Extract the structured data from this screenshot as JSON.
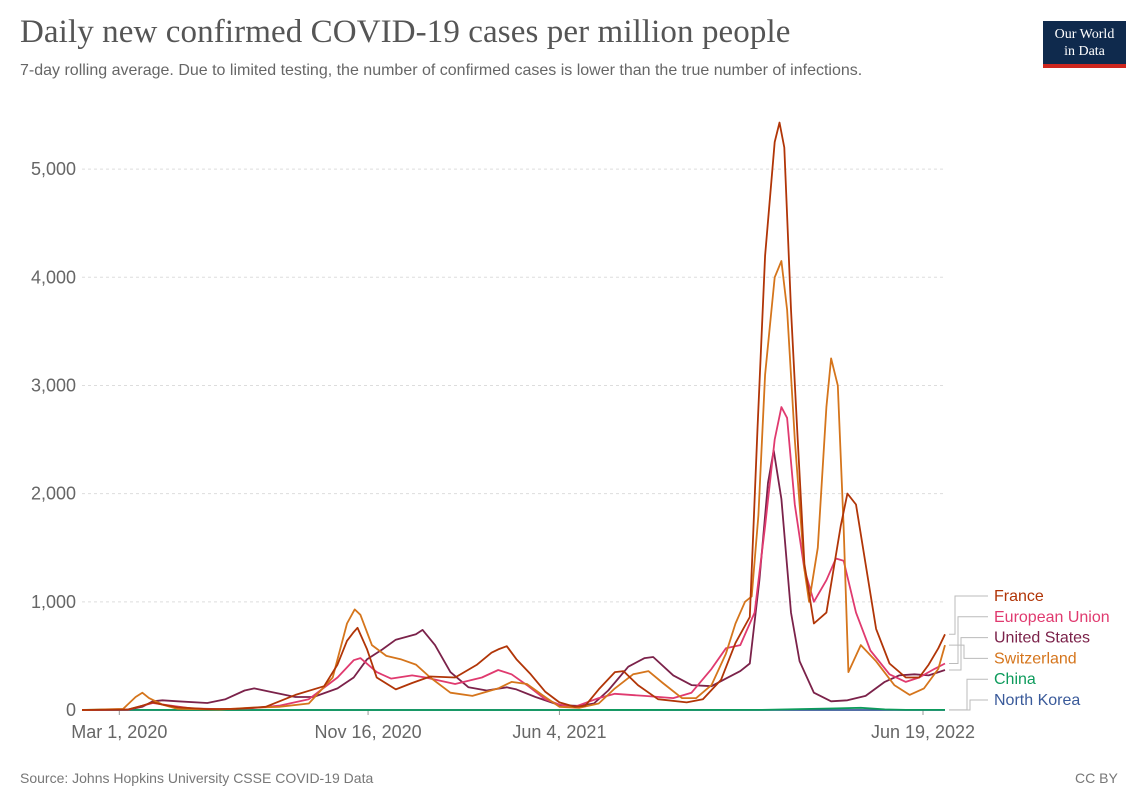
{
  "header": {
    "title": "Daily new confirmed COVID-19 cases per million people",
    "subtitle": "7-day rolling average. Due to limited testing, the number of confirmed cases is lower than the true number of infections."
  },
  "logo": {
    "line1": "Our World",
    "line2": "in Data",
    "bar_color": "#ce261e",
    "bg_color": "#0f2a4d"
  },
  "footer": {
    "source": "Source: Johns Hopkins University CSSE COVID-19 Data",
    "license": "CC BY"
  },
  "chart_data": {
    "type": "line",
    "title": "Daily new confirmed COVID-19 cases per million people",
    "xlabel": "",
    "ylabel": "",
    "x_domain": [
      "2020-01-22",
      "2022-07-12"
    ],
    "ylim": [
      0,
      5500
    ],
    "yticks": [
      0,
      1000,
      2000,
      3000,
      4000,
      5000
    ],
    "ytick_labels": [
      "0",
      "1,000",
      "2,000",
      "3,000",
      "4,000",
      "5,000"
    ],
    "xticks": [
      {
        "date": "2020-03-01",
        "label": "Mar 1, 2020"
      },
      {
        "date": "2020-11-16",
        "label": "Nov 16, 2020"
      },
      {
        "date": "2021-06-04",
        "label": "Jun 4, 2021"
      },
      {
        "date": "2022-06-19",
        "label": "Jun 19, 2022"
      }
    ],
    "grid": true,
    "legend_placement": "right",
    "series": [
      {
        "name": "France",
        "color": "#b13507",
        "points": [
          [
            "2020-01-22",
            0
          ],
          [
            "2020-03-10",
            5
          ],
          [
            "2020-03-25",
            40
          ],
          [
            "2020-04-05",
            70
          ],
          [
            "2020-04-15",
            50
          ],
          [
            "2020-05-01",
            25
          ],
          [
            "2020-06-01",
            8
          ],
          [
            "2020-07-01",
            10
          ],
          [
            "2020-08-01",
            30
          ],
          [
            "2020-09-01",
            140
          ],
          [
            "2020-10-01",
            220
          ],
          [
            "2020-10-15",
            420
          ],
          [
            "2020-10-25",
            640
          ],
          [
            "2020-11-01",
            720
          ],
          [
            "2020-11-05",
            760
          ],
          [
            "2020-11-15",
            560
          ],
          [
            "2020-11-25",
            300
          ],
          [
            "2020-12-15",
            190
          ],
          [
            "2021-01-01",
            250
          ],
          [
            "2021-01-20",
            310
          ],
          [
            "2021-02-15",
            300
          ],
          [
            "2021-03-10",
            420
          ],
          [
            "2021-03-25",
            530
          ],
          [
            "2021-04-01",
            560
          ],
          [
            "2021-04-10",
            590
          ],
          [
            "2021-04-20",
            470
          ],
          [
            "2021-05-05",
            330
          ],
          [
            "2021-05-20",
            170
          ],
          [
            "2021-06-04",
            70
          ],
          [
            "2021-06-20",
            30
          ],
          [
            "2021-07-01",
            40
          ],
          [
            "2021-07-15",
            190
          ],
          [
            "2021-08-01",
            350
          ],
          [
            "2021-08-10",
            360
          ],
          [
            "2021-08-25",
            230
          ],
          [
            "2021-09-15",
            100
          ],
          [
            "2021-10-15",
            70
          ],
          [
            "2021-11-01",
            100
          ],
          [
            "2021-11-20",
            280
          ],
          [
            "2021-12-05",
            620
          ],
          [
            "2021-12-20",
            860
          ],
          [
            "2021-12-28",
            2600
          ],
          [
            "2022-01-05",
            4200
          ],
          [
            "2022-01-15",
            5250
          ],
          [
            "2022-01-20",
            5430
          ],
          [
            "2022-01-25",
            5200
          ],
          [
            "2022-02-01",
            3700
          ],
          [
            "2022-02-08",
            2500
          ],
          [
            "2022-02-15",
            1350
          ],
          [
            "2022-02-25",
            800
          ],
          [
            "2022-03-10",
            900
          ],
          [
            "2022-03-25",
            1700
          ],
          [
            "2022-04-01",
            2000
          ],
          [
            "2022-04-10",
            1900
          ],
          [
            "2022-04-20",
            1350
          ],
          [
            "2022-05-01",
            750
          ],
          [
            "2022-05-15",
            430
          ],
          [
            "2022-06-01",
            300
          ],
          [
            "2022-06-15",
            300
          ],
          [
            "2022-06-25",
            420
          ],
          [
            "2022-07-05",
            570
          ],
          [
            "2022-07-12",
            700
          ]
        ]
      },
      {
        "name": "European Union",
        "color": "#e03a6f",
        "points": [
          [
            "2020-01-22",
            0
          ],
          [
            "2020-03-10",
            3
          ],
          [
            "2020-03-25",
            40
          ],
          [
            "2020-04-05",
            65
          ],
          [
            "2020-04-20",
            45
          ],
          [
            "2020-05-15",
            15
          ],
          [
            "2020-06-15",
            8
          ],
          [
            "2020-07-15",
            15
          ],
          [
            "2020-08-15",
            40
          ],
          [
            "2020-09-15",
            100
          ],
          [
            "2020-10-15",
            300
          ],
          [
            "2020-11-01",
            460
          ],
          [
            "2020-11-08",
            480
          ],
          [
            "2020-11-25",
            350
          ],
          [
            "2020-12-10",
            290
          ],
          [
            "2021-01-01",
            320
          ],
          [
            "2021-01-15",
            300
          ],
          [
            "2021-02-15",
            240
          ],
          [
            "2021-03-15",
            300
          ],
          [
            "2021-04-01",
            370
          ],
          [
            "2021-04-15",
            330
          ],
          [
            "2021-05-01",
            230
          ],
          [
            "2021-05-20",
            100
          ],
          [
            "2021-06-04",
            50
          ],
          [
            "2021-06-20",
            30
          ],
          [
            "2021-07-15",
            110
          ],
          [
            "2021-08-01",
            150
          ],
          [
            "2021-09-01",
            130
          ],
          [
            "2021-10-01",
            110
          ],
          [
            "2021-10-20",
            160
          ],
          [
            "2021-11-10",
            380
          ],
          [
            "2021-11-25",
            570
          ],
          [
            "2021-12-10",
            600
          ],
          [
            "2021-12-25",
            900
          ],
          [
            "2022-01-05",
            1700
          ],
          [
            "2022-01-15",
            2500
          ],
          [
            "2022-01-22",
            2800
          ],
          [
            "2022-01-28",
            2700
          ],
          [
            "2022-02-05",
            1900
          ],
          [
            "2022-02-15",
            1300
          ],
          [
            "2022-02-25",
            1000
          ],
          [
            "2022-03-10",
            1200
          ],
          [
            "2022-03-20",
            1400
          ],
          [
            "2022-03-28",
            1380
          ],
          [
            "2022-04-10",
            900
          ],
          [
            "2022-04-25",
            550
          ],
          [
            "2022-05-15",
            330
          ],
          [
            "2022-06-01",
            260
          ],
          [
            "2022-06-15",
            300
          ],
          [
            "2022-07-01",
            380
          ],
          [
            "2022-07-12",
            430
          ]
        ]
      },
      {
        "name": "United States",
        "color": "#7b224a",
        "points": [
          [
            "2020-01-22",
            0
          ],
          [
            "2020-03-10",
            3
          ],
          [
            "2020-03-25",
            30
          ],
          [
            "2020-04-05",
            80
          ],
          [
            "2020-04-15",
            90
          ],
          [
            "2020-05-01",
            80
          ],
          [
            "2020-06-01",
            65
          ],
          [
            "2020-06-20",
            100
          ],
          [
            "2020-07-10",
            180
          ],
          [
            "2020-07-20",
            200
          ],
          [
            "2020-08-05",
            170
          ],
          [
            "2020-09-01",
            120
          ],
          [
            "2020-09-20",
            120
          ],
          [
            "2020-10-15",
            200
          ],
          [
            "2020-11-01",
            300
          ],
          [
            "2020-11-15",
            470
          ],
          [
            "2020-12-01",
            560
          ],
          [
            "2020-12-15",
            650
          ],
          [
            "2021-01-05",
            700
          ],
          [
            "2021-01-12",
            740
          ],
          [
            "2021-01-25",
            600
          ],
          [
            "2021-02-10",
            350
          ],
          [
            "2021-03-01",
            210
          ],
          [
            "2021-03-20",
            180
          ],
          [
            "2021-04-10",
            210
          ],
          [
            "2021-04-20",
            190
          ],
          [
            "2021-05-10",
            120
          ],
          [
            "2021-06-04",
            45
          ],
          [
            "2021-06-25",
            38
          ],
          [
            "2021-07-10",
            60
          ],
          [
            "2021-07-25",
            180
          ],
          [
            "2021-08-15",
            400
          ],
          [
            "2021-09-01",
            480
          ],
          [
            "2021-09-10",
            490
          ],
          [
            "2021-10-01",
            320
          ],
          [
            "2021-10-20",
            230
          ],
          [
            "2021-11-10",
            220
          ],
          [
            "2021-11-25",
            290
          ],
          [
            "2021-12-10",
            360
          ],
          [
            "2021-12-20",
            430
          ],
          [
            "2021-12-30",
            1200
          ],
          [
            "2022-01-08",
            2100
          ],
          [
            "2022-01-14",
            2400
          ],
          [
            "2022-01-22",
            1950
          ],
          [
            "2022-02-01",
            900
          ],
          [
            "2022-02-10",
            450
          ],
          [
            "2022-02-25",
            160
          ],
          [
            "2022-03-15",
            80
          ],
          [
            "2022-04-01",
            90
          ],
          [
            "2022-04-20",
            130
          ],
          [
            "2022-05-10",
            260
          ],
          [
            "2022-05-25",
            320
          ],
          [
            "2022-06-10",
            330
          ],
          [
            "2022-06-25",
            320
          ],
          [
            "2022-07-12",
            370
          ]
        ]
      },
      {
        "name": "Switzerland",
        "color": "#d5751c",
        "points": [
          [
            "2020-01-22",
            0
          ],
          [
            "2020-03-05",
            10
          ],
          [
            "2020-03-18",
            120
          ],
          [
            "2020-03-25",
            160
          ],
          [
            "2020-04-01",
            110
          ],
          [
            "2020-04-15",
            50
          ],
          [
            "2020-05-01",
            10
          ],
          [
            "2020-06-15",
            5
          ],
          [
            "2020-07-15",
            20
          ],
          [
            "2020-08-15",
            30
          ],
          [
            "2020-09-15",
            60
          ],
          [
            "2020-10-10",
            300
          ],
          [
            "2020-10-25",
            800
          ],
          [
            "2020-11-02",
            930
          ],
          [
            "2020-11-08",
            880
          ],
          [
            "2020-11-20",
            600
          ],
          [
            "2020-12-05",
            500
          ],
          [
            "2020-12-20",
            470
          ],
          [
            "2021-01-05",
            420
          ],
          [
            "2021-01-20",
            300
          ],
          [
            "2021-02-10",
            160
          ],
          [
            "2021-03-05",
            130
          ],
          [
            "2021-04-01",
            200
          ],
          [
            "2021-04-15",
            260
          ],
          [
            "2021-05-01",
            240
          ],
          [
            "2021-05-20",
            120
          ],
          [
            "2021-06-04",
            30
          ],
          [
            "2021-06-25",
            20
          ],
          [
            "2021-07-15",
            60
          ],
          [
            "2021-08-01",
            200
          ],
          [
            "2021-08-20",
            330
          ],
          [
            "2021-09-05",
            360
          ],
          [
            "2021-09-20",
            250
          ],
          [
            "2021-10-10",
            110
          ],
          [
            "2021-10-25",
            110
          ],
          [
            "2021-11-10",
            230
          ],
          [
            "2021-11-25",
            520
          ],
          [
            "2021-12-05",
            800
          ],
          [
            "2021-12-15",
            1000
          ],
          [
            "2021-12-22",
            1050
          ],
          [
            "2021-12-29",
            1800
          ],
          [
            "2022-01-05",
            3100
          ],
          [
            "2022-01-15",
            4000
          ],
          [
            "2022-01-22",
            4150
          ],
          [
            "2022-01-28",
            3700
          ],
          [
            "2022-02-05",
            2500
          ],
          [
            "2022-02-15",
            1300
          ],
          [
            "2022-02-20",
            1000
          ],
          [
            "2022-03-01",
            1500
          ],
          [
            "2022-03-10",
            2800
          ],
          [
            "2022-03-15",
            3250
          ],
          [
            "2022-03-22",
            3000
          ],
          [
            "2022-03-28",
            1700
          ],
          [
            "2022-04-02",
            350
          ],
          [
            "2022-04-15",
            600
          ],
          [
            "2022-05-01",
            450
          ],
          [
            "2022-05-20",
            230
          ],
          [
            "2022-06-05",
            140
          ],
          [
            "2022-06-20",
            200
          ],
          [
            "2022-07-05",
            380
          ],
          [
            "2022-07-12",
            600
          ]
        ]
      },
      {
        "name": "China",
        "color": "#0d9b5c",
        "points": [
          [
            "2020-01-22",
            0.5
          ],
          [
            "2020-02-05",
            2
          ],
          [
            "2020-02-12",
            3
          ],
          [
            "2020-03-01",
            0.5
          ],
          [
            "2020-06-01",
            0
          ],
          [
            "2021-06-01",
            0
          ],
          [
            "2022-01-01",
            0.5
          ],
          [
            "2022-03-20",
            15
          ],
          [
            "2022-04-15",
            20
          ],
          [
            "2022-05-10",
            6
          ],
          [
            "2022-06-01",
            1
          ],
          [
            "2022-07-12",
            1
          ]
        ]
      },
      {
        "name": "North Korea",
        "color": "#3a5a9a",
        "points": [
          [
            "2020-01-22",
            0
          ],
          [
            "2022-07-12",
            0
          ]
        ]
      }
    ],
    "legend_order": [
      "France",
      "European Union",
      "United States",
      "Switzerland",
      "China",
      "North Korea"
    ]
  }
}
